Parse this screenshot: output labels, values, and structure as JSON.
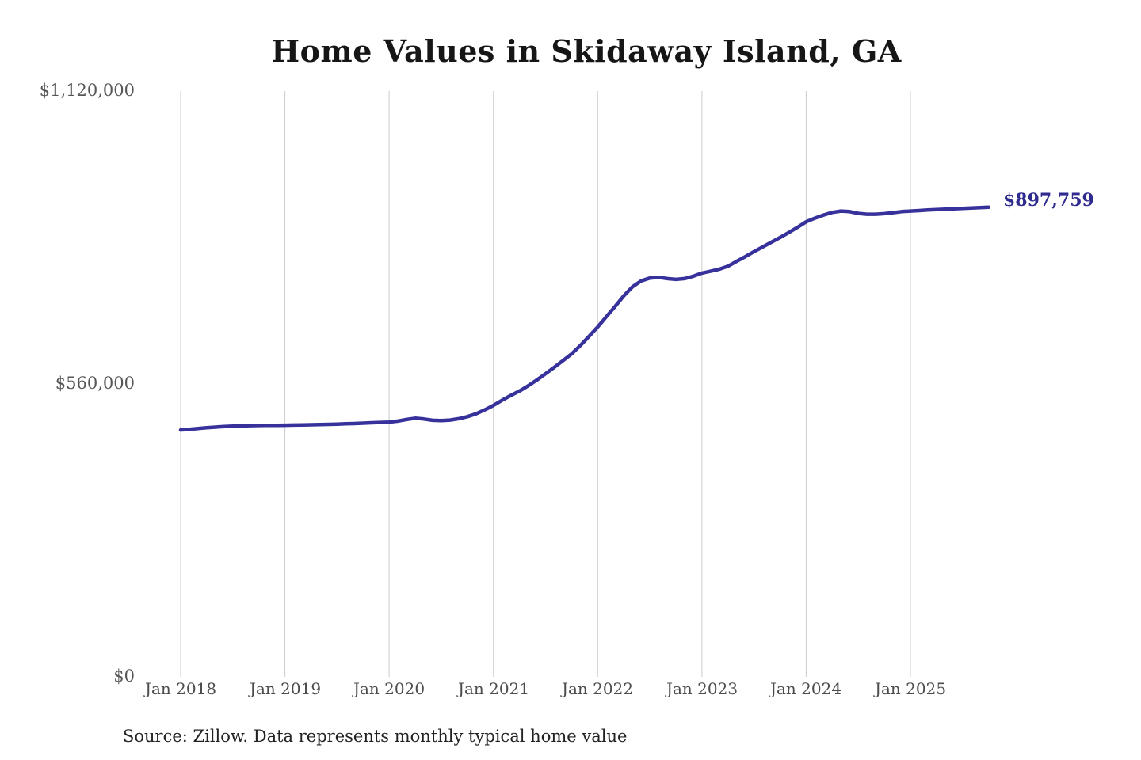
{
  "page": {
    "source_note": "Source: Zillow. Data represents monthly typical home value"
  },
  "chart_data": {
    "type": "line",
    "title": "Home Values in Skidaway Island, GA",
    "xlabel": "",
    "ylabel": "",
    "x_tick_labels": [
      "Jan 2018",
      "Jan 2019",
      "Jan 2020",
      "Jan 2021",
      "Jan 2022",
      "Jan 2023",
      "Jan 2024",
      "Jan 2025"
    ],
    "y_tick_labels": [
      "$1,120,000",
      "$560,000",
      "$0"
    ],
    "y_axis_range": [
      0,
      1120000
    ],
    "grid": "vertical-only",
    "legend": "none",
    "x_unit": "month",
    "x_start": "Jan 2018",
    "x_end": "Oct 2025",
    "end_point_label": "$897,759",
    "end_point_value": 897759,
    "series": [
      {
        "name": "Monthly typical home value",
        "values": [
          472000,
          473500,
          475000,
          476500,
          477500,
          478500,
          479300,
          480000,
          480400,
          480700,
          480900,
          481000,
          481200,
          481400,
          481700,
          482000,
          482400,
          482800,
          483300,
          483800,
          484400,
          485100,
          485900,
          486500,
          487000,
          489000,
          492000,
          494500,
          493000,
          490500,
          490000,
          491000,
          493500,
          497500,
          503000,
          510500,
          519000,
          529000,
          538000,
          546500,
          556500,
          567500,
          579500,
          592000,
          604500,
          617500,
          633500,
          651000,
          669000,
          688500,
          708000,
          728500,
          745500,
          757000,
          762500,
          764000,
          761500,
          760000,
          761500,
          766000,
          772000,
          775500,
          779500,
          785000,
          794500,
          803500,
          813000,
          822000,
          831000,
          840000,
          849500,
          859500,
          870000,
          877000,
          883000,
          888000,
          890500,
          889500,
          886000,
          884500,
          884500,
          885500,
          887500,
          889500,
          890500,
          891500,
          892500,
          893300,
          894000,
          894800,
          895500,
          896300,
          897100,
          897759
        ]
      }
    ],
    "colors": {
      "line": "#37319b",
      "end_label": "#2e2a8e",
      "grid": "#cbcbcb",
      "tick_text": "#4c4c4c",
      "title_text": "#161616"
    }
  }
}
